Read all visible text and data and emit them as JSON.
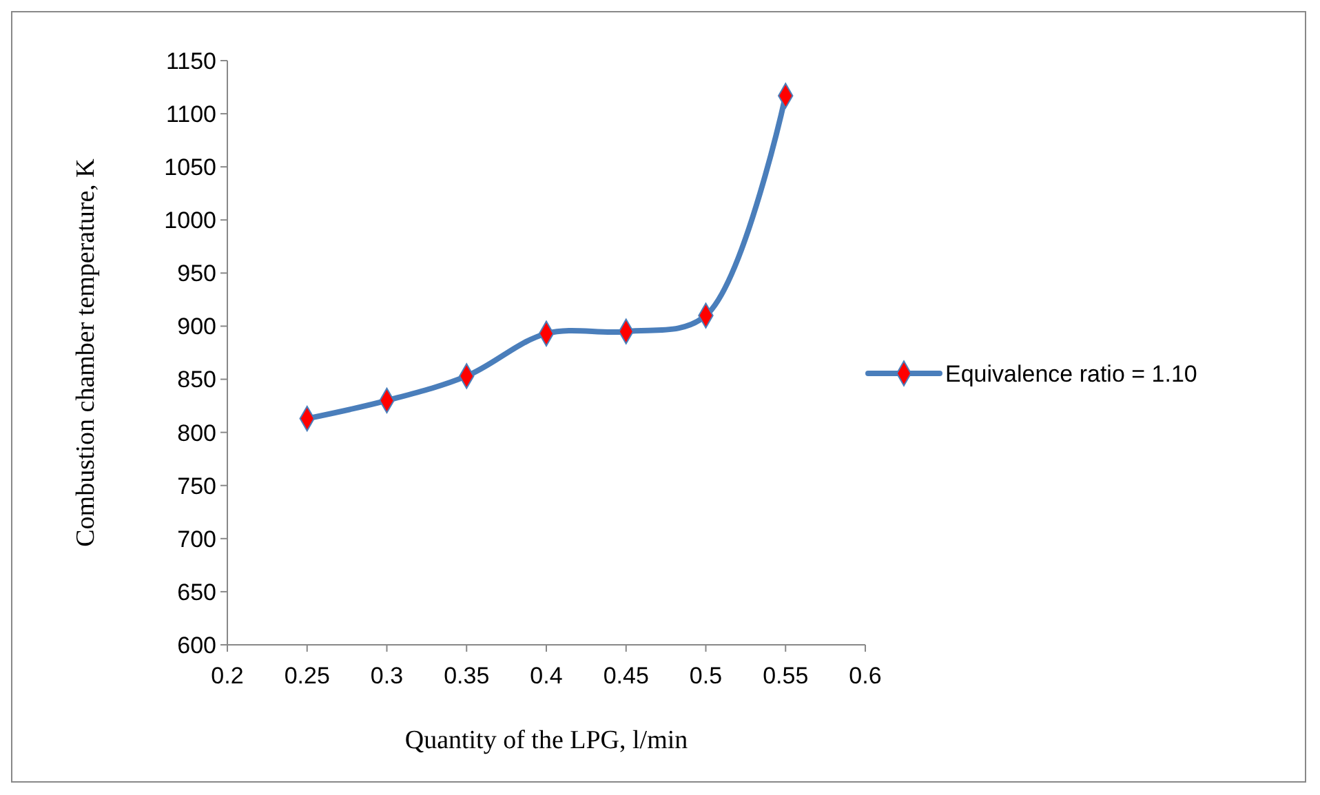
{
  "chart_data": {
    "type": "line",
    "xlabel": "Quantity of the LPG, l/min",
    "ylabel": "Combustion chamber temperature, K",
    "x": [
      0.25,
      0.3,
      0.35,
      0.4,
      0.45,
      0.5,
      0.55
    ],
    "series": [
      {
        "name": "Equivalence ratio = 1.10",
        "color": "#4a7ebb",
        "colors": [
          "#ff0000",
          "#ff0000",
          "#ff0000",
          "#ff0000",
          "#ff0000",
          "#ff0000",
          "#ff0000"
        ],
        "values": [
          813,
          830,
          853,
          893,
          895,
          910,
          1117
        ]
      }
    ],
    "xlim": [
      0.2,
      0.6
    ],
    "xticks": [
      0.2,
      0.25,
      0.3,
      0.35,
      0.4,
      0.45,
      0.5,
      0.55,
      0.6
    ],
    "ylim": [
      600,
      1150
    ],
    "yticks": [
      600,
      650,
      700,
      750,
      800,
      850,
      900,
      950,
      1000,
      1050,
      1100,
      1150
    ],
    "marker": "diamond",
    "line_style": "solid",
    "grid": false,
    "legend": "right"
  }
}
